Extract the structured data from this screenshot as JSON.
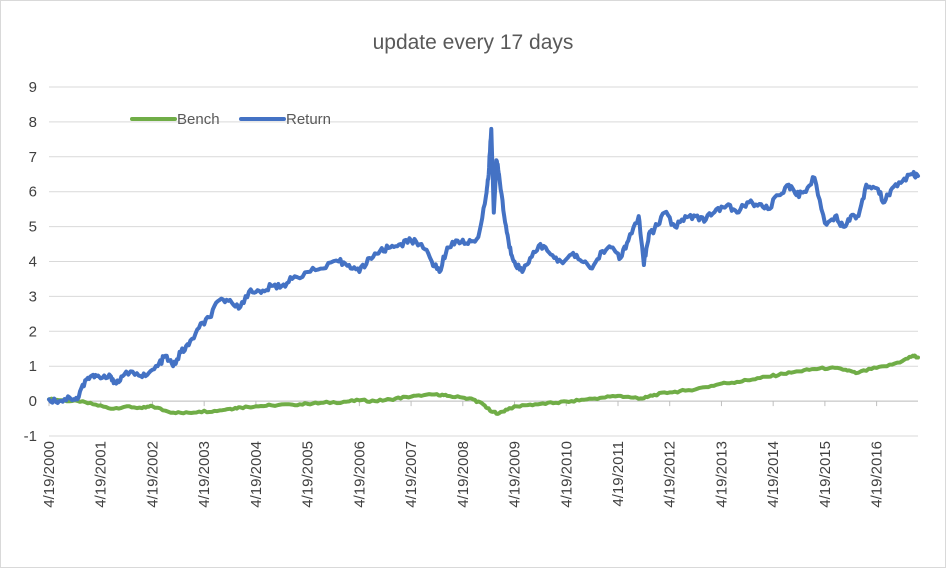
{
  "chart_data": {
    "type": "line",
    "title": "update every 17 days",
    "xlabel": "",
    "ylabel": "",
    "ylim": [
      -1,
      9
    ],
    "y_ticks": [
      "-1",
      "0",
      "1",
      "2",
      "3",
      "4",
      "5",
      "6",
      "7",
      "8",
      "9"
    ],
    "x_tick_labels": [
      "4/19/2000",
      "4/19/2001",
      "4/19/2002",
      "4/19/2003",
      "4/19/2004",
      "4/19/2005",
      "4/19/2006",
      "4/19/2007",
      "4/19/2008",
      "4/19/2009",
      "4/19/2010",
      "4/19/2011",
      "4/19/2012",
      "4/19/2013",
      "4/19/2014",
      "4/19/2015",
      "4/19/2016"
    ],
    "xlim": [
      2000.3,
      2017.1
    ],
    "grid": true,
    "legend_position": "top-left",
    "series": [
      {
        "name": "Bench",
        "color": "#70ad47",
        "points": [
          [
            2000.3,
            0.05
          ],
          [
            2000.6,
            0.02
          ],
          [
            2000.9,
            -0.02
          ],
          [
            2001.2,
            -0.1
          ],
          [
            2001.5,
            -0.22
          ],
          [
            2001.8,
            -0.15
          ],
          [
            2002.1,
            -0.2
          ],
          [
            2002.3,
            -0.15
          ],
          [
            2002.6,
            -0.3
          ],
          [
            2002.9,
            -0.35
          ],
          [
            2003.2,
            -0.3
          ],
          [
            2003.5,
            -0.28
          ],
          [
            2003.8,
            -0.22
          ],
          [
            2004.0,
            -0.18
          ],
          [
            2004.3,
            -0.15
          ],
          [
            2004.6,
            -0.12
          ],
          [
            2005.0,
            -0.1
          ],
          [
            2005.3,
            -0.08
          ],
          [
            2005.6,
            -0.05
          ],
          [
            2006.0,
            -0.02
          ],
          [
            2006.3,
            0.02
          ],
          [
            2006.6,
            0.0
          ],
          [
            2006.9,
            0.05
          ],
          [
            2007.2,
            0.12
          ],
          [
            2007.5,
            0.15
          ],
          [
            2007.8,
            0.2
          ],
          [
            2008.0,
            0.15
          ],
          [
            2008.3,
            0.1
          ],
          [
            2008.5,
            0.05
          ],
          [
            2008.7,
            -0.1
          ],
          [
            2008.85,
            -0.3
          ],
          [
            2009.0,
            -0.35
          ],
          [
            2009.2,
            -0.2
          ],
          [
            2009.5,
            -0.12
          ],
          [
            2009.8,
            -0.08
          ],
          [
            2010.1,
            -0.05
          ],
          [
            2010.4,
            0.0
          ],
          [
            2010.7,
            0.05
          ],
          [
            2011.0,
            0.1
          ],
          [
            2011.3,
            0.15
          ],
          [
            2011.6,
            0.1
          ],
          [
            2011.8,
            0.08
          ],
          [
            2012.0,
            0.18
          ],
          [
            2012.3,
            0.25
          ],
          [
            2012.6,
            0.3
          ],
          [
            2013.0,
            0.4
          ],
          [
            2013.3,
            0.5
          ],
          [
            2013.6,
            0.55
          ],
          [
            2013.9,
            0.62
          ],
          [
            2014.2,
            0.7
          ],
          [
            2014.5,
            0.78
          ],
          [
            2014.8,
            0.85
          ],
          [
            2015.1,
            0.92
          ],
          [
            2015.4,
            0.95
          ],
          [
            2015.7,
            0.9
          ],
          [
            2015.9,
            0.8
          ],
          [
            2016.2,
            0.92
          ],
          [
            2016.5,
            1.0
          ],
          [
            2016.8,
            1.15
          ],
          [
            2017.0,
            1.3
          ],
          [
            2017.1,
            1.25
          ]
        ]
      },
      {
        "name": "Return",
        "color": "#4472c4",
        "points": [
          [
            2000.3,
            0.05
          ],
          [
            2000.5,
            0.0
          ],
          [
            2000.7,
            0.1
          ],
          [
            2000.85,
            0.05
          ],
          [
            2001.0,
            0.6
          ],
          [
            2001.15,
            0.75
          ],
          [
            2001.3,
            0.65
          ],
          [
            2001.5,
            0.7
          ],
          [
            2001.6,
            0.5
          ],
          [
            2001.75,
            0.75
          ],
          [
            2002.0,
            0.8
          ],
          [
            2002.2,
            0.75
          ],
          [
            2002.4,
            1.0
          ],
          [
            2002.55,
            1.3
          ],
          [
            2002.7,
            1.0
          ],
          [
            2002.85,
            1.4
          ],
          [
            2003.0,
            1.6
          ],
          [
            2003.2,
            2.1
          ],
          [
            2003.4,
            2.4
          ],
          [
            2003.6,
            2.9
          ],
          [
            2003.8,
            2.9
          ],
          [
            2004.0,
            2.7
          ],
          [
            2004.2,
            3.2
          ],
          [
            2004.4,
            3.1
          ],
          [
            2004.6,
            3.3
          ],
          [
            2004.8,
            3.3
          ],
          [
            2005.0,
            3.5
          ],
          [
            2005.3,
            3.7
          ],
          [
            2005.6,
            3.8
          ],
          [
            2005.9,
            4.0
          ],
          [
            2006.1,
            3.9
          ],
          [
            2006.3,
            3.7
          ],
          [
            2006.5,
            4.1
          ],
          [
            2006.7,
            4.3
          ],
          [
            2006.9,
            4.4
          ],
          [
            2007.1,
            4.5
          ],
          [
            2007.3,
            4.6
          ],
          [
            2007.5,
            4.5
          ],
          [
            2007.7,
            4.0
          ],
          [
            2007.85,
            3.7
          ],
          [
            2008.0,
            4.4
          ],
          [
            2008.2,
            4.6
          ],
          [
            2008.4,
            4.5
          ],
          [
            2008.6,
            4.7
          ],
          [
            2008.75,
            5.9
          ],
          [
            2008.8,
            6.5
          ],
          [
            2008.85,
            7.8
          ],
          [
            2008.9,
            5.4
          ],
          [
            2008.95,
            6.9
          ],
          [
            2009.0,
            6.5
          ],
          [
            2009.1,
            5.3
          ],
          [
            2009.2,
            4.4
          ],
          [
            2009.3,
            4.0
          ],
          [
            2009.45,
            3.7
          ],
          [
            2009.6,
            4.1
          ],
          [
            2009.8,
            4.5
          ],
          [
            2010.0,
            4.2
          ],
          [
            2010.2,
            4.0
          ],
          [
            2010.4,
            4.2
          ],
          [
            2010.6,
            4.0
          ],
          [
            2010.8,
            3.8
          ],
          [
            2011.0,
            4.3
          ],
          [
            2011.2,
            4.4
          ],
          [
            2011.35,
            4.1
          ],
          [
            2011.5,
            4.6
          ],
          [
            2011.7,
            5.3
          ],
          [
            2011.8,
            3.9
          ],
          [
            2011.9,
            4.8
          ],
          [
            2012.0,
            4.9
          ],
          [
            2012.2,
            5.4
          ],
          [
            2012.4,
            5.0
          ],
          [
            2012.6,
            5.3
          ],
          [
            2012.8,
            5.3
          ],
          [
            2013.0,
            5.2
          ],
          [
            2013.2,
            5.5
          ],
          [
            2013.4,
            5.6
          ],
          [
            2013.6,
            5.4
          ],
          [
            2013.8,
            5.7
          ],
          [
            2014.0,
            5.6
          ],
          [
            2014.2,
            5.5
          ],
          [
            2014.4,
            5.9
          ],
          [
            2014.6,
            6.2
          ],
          [
            2014.75,
            5.9
          ],
          [
            2014.9,
            6.0
          ],
          [
            2015.1,
            6.4
          ],
          [
            2015.3,
            5.1
          ],
          [
            2015.5,
            5.3
          ],
          [
            2015.65,
            5.0
          ],
          [
            2015.8,
            5.3
          ],
          [
            2015.95,
            5.3
          ],
          [
            2016.1,
            6.2
          ],
          [
            2016.3,
            6.1
          ],
          [
            2016.45,
            5.7
          ],
          [
            2016.6,
            6.1
          ],
          [
            2016.8,
            6.3
          ],
          [
            2017.0,
            6.5
          ],
          [
            2017.1,
            6.45
          ]
        ]
      }
    ]
  }
}
